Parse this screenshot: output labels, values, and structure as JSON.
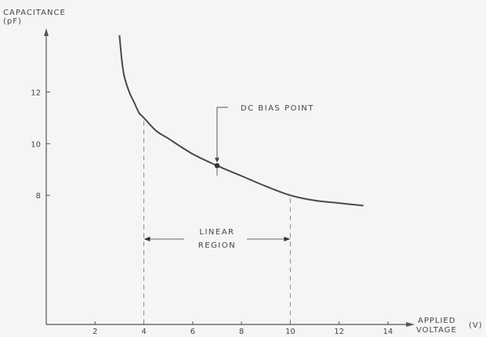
{
  "chart_data": {
    "type": "line",
    "title": "",
    "ylabel_line1": "CAPACITANCE",
    "ylabel_line2": "(pF)",
    "xlabel_line1": "APPLIED",
    "xlabel_line2": "VOLTAGE",
    "xlabel_unit": "(V)",
    "xlim": [
      0,
      15
    ],
    "ylim": [
      3,
      14.5
    ],
    "x_ticks": [
      2,
      4,
      6,
      8,
      10,
      12,
      14
    ],
    "y_ticks": [
      8,
      10,
      12
    ],
    "grid": false,
    "series": [
      {
        "x": [
          3.0,
          3.1,
          3.2,
          3.4,
          3.6,
          3.8,
          4.0,
          4.5,
          5.0,
          6.0,
          7.0,
          8.0,
          9.0,
          10.0,
          11.0,
          12.0,
          13.0
        ],
        "y": [
          14.2,
          13.2,
          12.6,
          12.0,
          11.6,
          11.2,
          11.0,
          10.5,
          10.2,
          9.6,
          9.15,
          8.75,
          8.35,
          8.0,
          7.8,
          7.7,
          7.6
        ]
      }
    ],
    "bias_point": {
      "x": 7.0,
      "y": 9.15,
      "label": "DC BIAS POINT"
    },
    "linear_region": {
      "x_start": 4,
      "x_end": 10,
      "label_line1": "LINEAR",
      "label_line2": "REGION"
    },
    "colors": {
      "line": "#4a4a4a",
      "background": "#f4f5f4"
    }
  }
}
